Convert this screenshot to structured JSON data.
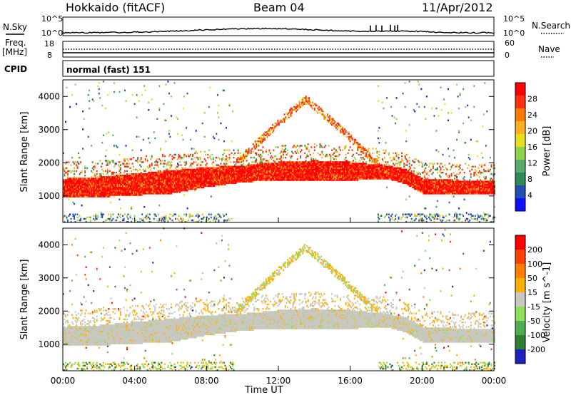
{
  "header": {
    "station": "Hokkaido (fitACF)",
    "beam": "Beam 04",
    "date": "11/Apr/2012"
  },
  "top_panels": {
    "nsky_label": "N.Sky",
    "nsearch_label": "N.Search",
    "noise_ticks": [
      "10^5",
      "10^0"
    ],
    "freq_label_line1": "Freq.",
    "freq_label_line2": "[MHz]",
    "freq_ticks": [
      "18",
      "8"
    ],
    "nave_label": "Nave",
    "nave_ticks": [
      "60",
      "0"
    ],
    "cpid_label": "CPID",
    "cpid_text": "normal (fast) 151"
  },
  "colors": {
    "power_scale": [
      "#1010ff",
      "#2050b0",
      "#2e8b57",
      "#5aaa6a",
      "#8fd44a",
      "#e6e01a",
      "#ffb020",
      "#ff7a00",
      "#ff3010",
      "#ff0000"
    ],
    "velocity_scale": [
      "#2020c0",
      "#2e7d32",
      "#4caf50",
      "#8ee05a",
      "#c8c8c0",
      "#ffb000",
      "#ff8000",
      "#ff4000",
      "#ff0000"
    ],
    "ground_scatter": "#c8c8c0"
  },
  "chart_data": [
    {
      "type": "heatmap",
      "title": "",
      "ylabel": "Slant Range [km]",
      "xlabel": "",
      "xlim": [
        "00:00",
        "24:00"
      ],
      "ylim": [
        200,
        4500
      ],
      "y_ticks": [
        "1000",
        "2000",
        "3000",
        "4000"
      ],
      "colorbar_label": "Power [dB]",
      "colorbar_ticks": [
        "4",
        "8",
        "12",
        "16",
        "20",
        "24",
        "28"
      ],
      "dominant_layer": {
        "hours": [
          0,
          2,
          4,
          6,
          8,
          10,
          12,
          14,
          16,
          18,
          19,
          20,
          22,
          24
        ],
        "range_low_km": [
          950,
          950,
          1000,
          1050,
          1250,
          1400,
          1450,
          1450,
          1450,
          1500,
          1350,
          1050,
          1050,
          1050
        ],
        "range_high_km": [
          1500,
          1550,
          1650,
          1750,
          1850,
          1900,
          2000,
          2050,
          2000,
          1900,
          1800,
          1500,
          1450,
          1450
        ]
      },
      "arc_feature": {
        "start_hour": 9.5,
        "peak_hour": 13.5,
        "end_hour": 17.5,
        "peak_range_km": 3900
      }
    },
    {
      "type": "heatmap",
      "title": "",
      "ylabel": "Slant Range [km]",
      "xlabel": "Time UT",
      "xlim": [
        "00:00",
        "24:00"
      ],
      "ylim": [
        200,
        4500
      ],
      "x_ticks": [
        "00:00",
        "04:00",
        "08:00",
        "12:00",
        "16:00",
        "20:00",
        "00:00"
      ],
      "y_ticks": [
        "1000",
        "2000",
        "3000",
        "4000"
      ],
      "colorbar_label": "Velocity [m s^-1]",
      "colorbar_ticks": [
        "200",
        "100",
        "50",
        "15",
        "-15",
        "-50",
        "-100",
        "-200"
      ],
      "dominant_value": "ground scatter"
    }
  ]
}
